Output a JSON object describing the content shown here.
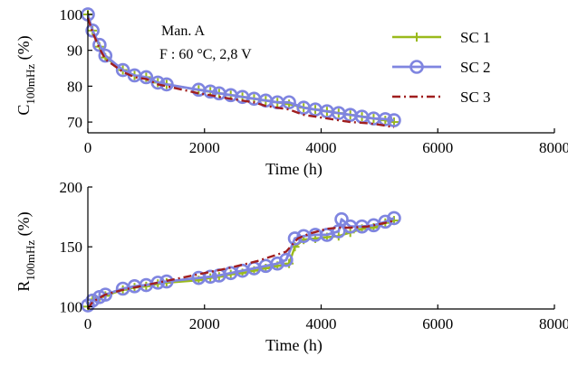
{
  "chart_data": [
    {
      "type": "line",
      "xlabel": "Time (h)",
      "ylabel": "C",
      "ylabel_sub": "100mHz",
      "ylabel_unit": " (%)",
      "xlim": [
        0,
        8000
      ],
      "ylim": [
        67,
        101
      ],
      "xticks": [
        0,
        2000,
        4000,
        6000,
        8000
      ],
      "yticks": [
        70,
        80,
        90,
        100
      ],
      "annotations": [
        "Man. A",
        "F : 60 °C, 2,8 V"
      ],
      "legend_position": "top-right",
      "series": [
        {
          "name": "SC 1",
          "color": "#9aba1c",
          "style": "solid-plus",
          "x": [
            0,
            80,
            200,
            300,
            600,
            800,
            1000,
            1200,
            1350,
            1900,
            2100,
            2250,
            2450,
            2650,
            2850,
            3050,
            3250,
            3450,
            3700,
            3900,
            4100,
            4300,
            4500,
            4700,
            4900,
            5100,
            5250
          ],
          "y": [
            100,
            95.5,
            91,
            88,
            84.5,
            83,
            82.5,
            81,
            80.5,
            79,
            78.5,
            78,
            77.5,
            77,
            76.5,
            76,
            75.5,
            75,
            74,
            73.5,
            73,
            72.5,
            72,
            71.5,
            71,
            70.5,
            70
          ]
        },
        {
          "name": "SC 2",
          "color": "#7f85e0",
          "style": "solid-circle",
          "x": [
            0,
            80,
            200,
            300,
            600,
            800,
            1000,
            1200,
            1350,
            1900,
            2100,
            2250,
            2450,
            2650,
            2850,
            3050,
            3250,
            3450,
            3700,
            3900,
            4100,
            4300,
            4500,
            4700,
            4900,
            5100,
            5250
          ],
          "y": [
            100,
            95.5,
            91.5,
            88.5,
            84.5,
            83,
            82.5,
            81,
            80.5,
            79,
            78.5,
            78,
            77.5,
            77,
            76.5,
            76,
            75.5,
            75.5,
            74,
            73.5,
            73,
            72.5,
            72,
            71.5,
            71,
            70.8,
            70.5
          ]
        },
        {
          "name": "SC 3",
          "color": "#a01e1e",
          "style": "dash-dot",
          "x": [
            0,
            80,
            200,
            300,
            600,
            800,
            1000,
            1200,
            1350,
            1900,
            2100,
            2250,
            2450,
            2650,
            2850,
            3050,
            3250,
            3450,
            3700,
            3900,
            4100,
            4300,
            4500,
            4700,
            4900,
            5100,
            5250
          ],
          "y": [
            99,
            95,
            90.5,
            87.5,
            84,
            82.5,
            82,
            80.5,
            80,
            78,
            77.5,
            77,
            76.5,
            76,
            75.5,
            74.5,
            74,
            73.5,
            72,
            71.5,
            71,
            70.5,
            70,
            69.8,
            69.5,
            69,
            68.5
          ]
        }
      ]
    },
    {
      "type": "line",
      "xlabel": "Time (h)",
      "ylabel": "R",
      "ylabel_sub": "100mHz",
      "ylabel_unit": " (%)",
      "xlim": [
        0,
        8000
      ],
      "ylim": [
        98,
        200
      ],
      "xticks": [
        0,
        2000,
        4000,
        6000,
        8000
      ],
      "yticks": [
        100,
        150,
        200
      ],
      "series": [
        {
          "name": "SC 1",
          "color": "#9aba1c",
          "style": "solid-plus",
          "x": [
            0,
            80,
            200,
            300,
            600,
            800,
            1000,
            1200,
            1350,
            1900,
            2100,
            2250,
            2450,
            2650,
            2850,
            3050,
            3250,
            3450,
            3550,
            3700,
            3900,
            4100,
            4300,
            4500,
            4700,
            4900,
            5100,
            5250
          ],
          "y": [
            100,
            106,
            108,
            109,
            114,
            116,
            117,
            119,
            120,
            122,
            124,
            125,
            127,
            128,
            130,
            132,
            134,
            136,
            150,
            156,
            157,
            158,
            159,
            162,
            165,
            166,
            170,
            172
          ]
        },
        {
          "name": "SC 2",
          "color": "#7f85e0",
          "style": "solid-circle",
          "x": [
            0,
            80,
            200,
            300,
            600,
            800,
            1000,
            1200,
            1350,
            1900,
            2100,
            2250,
            2450,
            2650,
            2850,
            3050,
            3250,
            3400,
            3550,
            3700,
            3900,
            4100,
            4300,
            4350,
            4500,
            4700,
            4900,
            5100,
            5250
          ],
          "y": [
            101,
            105,
            108,
            110,
            115,
            117,
            118,
            120,
            121,
            124,
            125,
            126,
            128,
            130,
            132,
            134,
            136,
            139,
            157,
            159,
            160,
            160,
            163,
            173,
            167,
            167,
            168,
            171,
            174
          ]
        },
        {
          "name": "SC 3",
          "color": "#a01e1e",
          "style": "dash-dot",
          "x": [
            0,
            80,
            300,
            600,
            1000,
            1400,
            1900,
            2400,
            2900,
            3400,
            3600,
            3800,
            4100,
            4300,
            4500,
            4800,
            5100,
            5250
          ],
          "y": [
            98,
            104,
            110,
            114,
            118,
            122,
            127,
            132,
            138,
            146,
            157,
            161,
            165,
            166,
            166,
            167,
            170,
            172
          ]
        }
      ]
    }
  ]
}
